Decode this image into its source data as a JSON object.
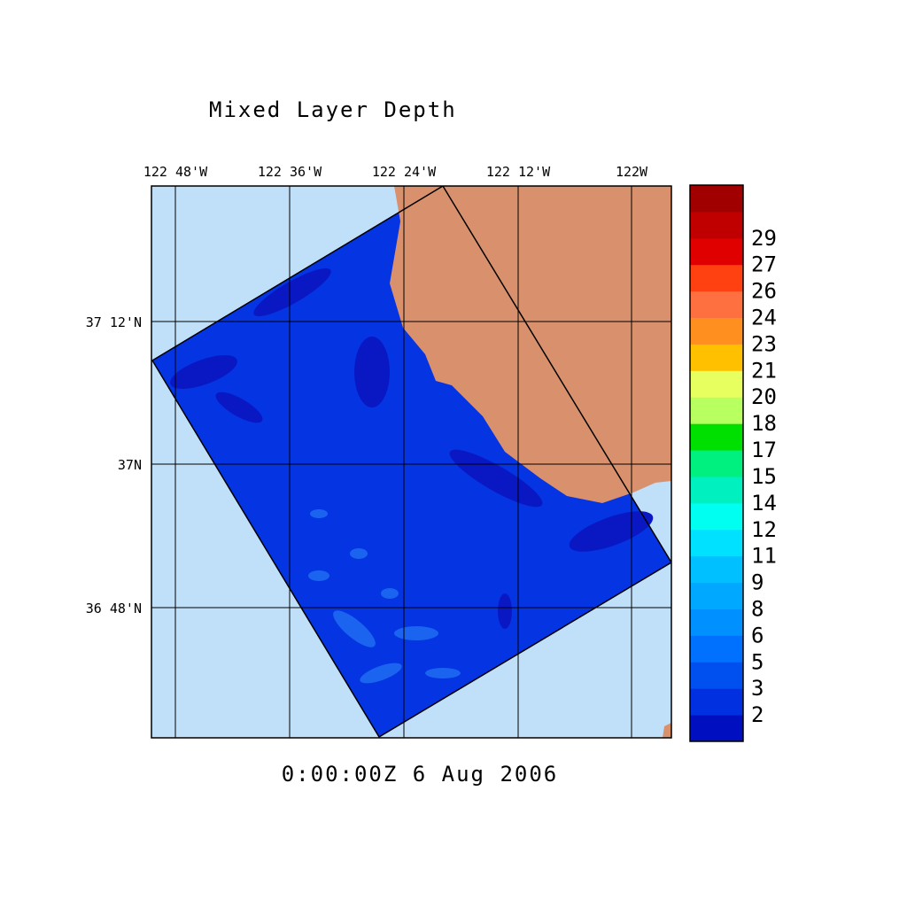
{
  "map": {
    "title": "Mixed Layer Depth",
    "lon_labels": [
      "122 48'W",
      "122 36'W",
      "122 24'W",
      "122 12'W",
      "122W"
    ],
    "lat_labels": [
      "37 12'N",
      "37N",
      "36 48'N"
    ],
    "timestamp": "0:00:00Z   6 Aug 2006",
    "colorbar": {
      "levels": [
        2,
        3,
        5,
        6,
        8,
        9,
        11,
        12,
        14,
        15,
        17,
        18,
        20,
        21,
        23,
        24,
        26,
        27,
        29
      ],
      "colors": [
        "#0010c0",
        "#0030e0",
        "#0050f0",
        "#0070ff",
        "#0090ff",
        "#00a8ff",
        "#00c0ff",
        "#00e0ff",
        "#00fff0",
        "#00f0c0",
        "#00f080",
        "#00e000",
        "#b8ff60",
        "#e8ff60",
        "#ffc000",
        "#ff9020",
        "#ff7040",
        "#ff4010",
        "#e00000",
        "#c00000",
        "#a00000"
      ]
    }
  }
}
